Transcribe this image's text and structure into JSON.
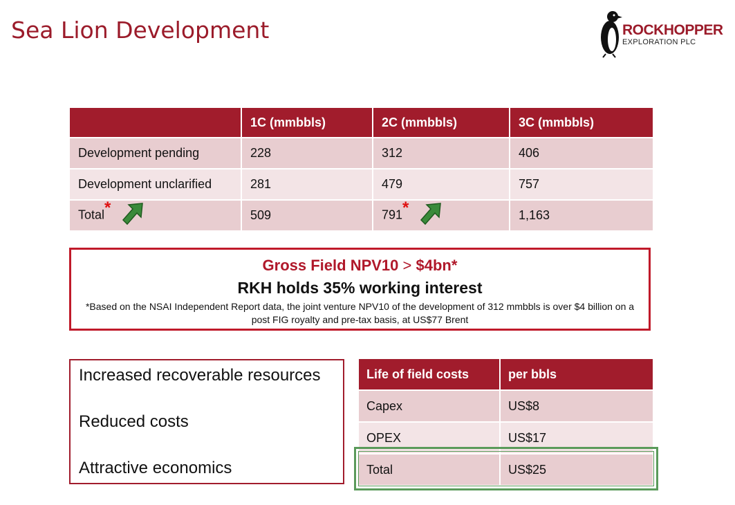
{
  "title": "Sea Lion Development",
  "logo": {
    "main": "ROCKHOPPER",
    "sub": "EXPLORATION PLC"
  },
  "resources_table": {
    "headers": [
      "",
      "1C (mmbbls)",
      "2C (mmbbls)",
      "3C (mmbbls)"
    ],
    "rows": [
      [
        "Development pending",
        "228",
        "312",
        "406"
      ],
      [
        "Development unclarified",
        "281",
        "479",
        "757"
      ],
      [
        "Total",
        "509",
        "791",
        "1,163"
      ]
    ],
    "star": "*",
    "colors": {
      "header": "#a11c2c",
      "row_dark": "#e8cdd0",
      "row_light": "#f3e4e6",
      "star": "#e01010",
      "arrow": "#3a8a3a"
    }
  },
  "npv": {
    "headline_a": "Gross Field NPV10",
    "headline_gt": ">",
    "headline_b": "$4bn*",
    "interest": "RKH holds 35% working interest",
    "note": "*Based on the NSAI Independent Report data, the joint venture NPV10 of  the development of 312 mmbbls is over $4 billion on a post FIG royalty and pre-tax basis, at US$77 Brent"
  },
  "bullets": [
    "Increased recoverable resources",
    "Reduced costs",
    "Attractive economics"
  ],
  "costs_table": {
    "headers": [
      "Life of field costs",
      "per bbls"
    ],
    "rows": [
      [
        "Capex",
        "US$8"
      ],
      [
        "OPEX",
        "US$17"
      ],
      [
        "Total",
        "US$25"
      ]
    ],
    "highlight_color": "#5a9a5a"
  }
}
